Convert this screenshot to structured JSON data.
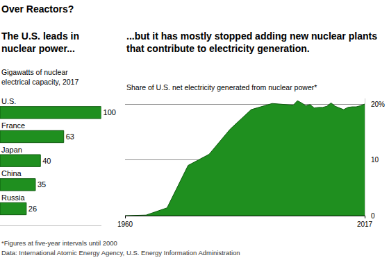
{
  "title": "Over Reactors?",
  "notes": [
    "*Figures at five-year intervals until 2000",
    "Data: International Atomic Energy Agency, U.S. Energy Information Administration"
  ],
  "chart_data": [
    {
      "type": "bar",
      "title": "The U.S. leads in nuclear power...",
      "subtitle": "Gigawatts of nuclear electrical capacity, 2017",
      "categories": [
        "U.S.",
        "France",
        "Japan",
        "China",
        "Russia"
      ],
      "values": [
        100,
        63,
        40,
        35,
        26
      ],
      "color": "#1f8f1f",
      "orientation": "horizontal",
      "data_labels": true,
      "tick_labels": false,
      "grid": false,
      "xlim": [
        0,
        100
      ]
    },
    {
      "type": "area",
      "title": "...but it has mostly stopped adding new nuclear plants that contribute to electricity generation.",
      "subtitle": "Share of U.S. net electricity generated from nuclear power*",
      "x": [
        1960,
        1965,
        1970,
        1975,
        1980,
        1985,
        1990,
        1995,
        2000,
        2001,
        2002,
        2003,
        2004,
        2005,
        2006,
        2007,
        2008,
        2009,
        2010,
        2011,
        2012,
        2013,
        2014,
        2015,
        2016,
        2017
      ],
      "values": [
        0,
        0.1,
        1.4,
        9.0,
        11.0,
        15.5,
        19.0,
        20.1,
        19.8,
        20.6,
        20.2,
        19.7,
        19.9,
        19.3,
        19.4,
        19.4,
        19.6,
        20.2,
        19.6,
        19.3,
        19.0,
        19.4,
        19.5,
        19.5,
        19.7,
        20.0
      ],
      "color": "#1f8f1f",
      "xlim": [
        1960,
        2017
      ],
      "xticks": [
        1960,
        2017
      ],
      "ylim": [
        0,
        21
      ],
      "yticks": [
        0,
        10,
        {
          "value": 20,
          "label": "20%"
        }
      ],
      "grid": true
    }
  ]
}
